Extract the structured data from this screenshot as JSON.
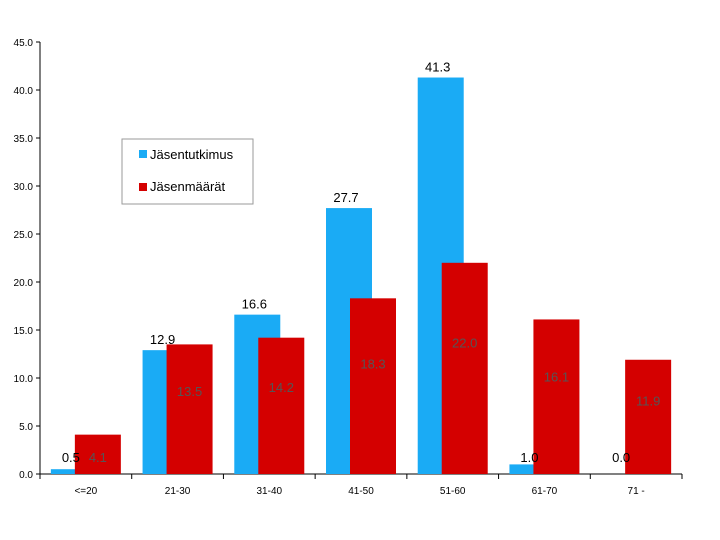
{
  "chart_data": {
    "type": "bar",
    "categories": [
      "<=20",
      "21-30",
      "31-40",
      "41-50",
      "51-60",
      "61-70",
      "71 -"
    ],
    "series": [
      {
        "name": "Jäsentutkimus",
        "values": [
          0.5,
          12.9,
          16.6,
          27.7,
          41.3,
          1.0,
          0.0
        ],
        "color": "#1aabf5"
      },
      {
        "name": "Jäsenmäärät",
        "values": [
          4.1,
          13.5,
          14.2,
          18.3,
          22.0,
          16.1,
          11.9
        ],
        "color": "#d40000"
      }
    ],
    "yticks": [
      "0.0",
      "5.0",
      "10.0",
      "15.0",
      "20.0",
      "25.0",
      "30.0",
      "35.0",
      "40.0",
      "45.0"
    ],
    "ylim": [
      0,
      45
    ],
    "grid": false,
    "legend_position": "upper-left inside plot"
  }
}
